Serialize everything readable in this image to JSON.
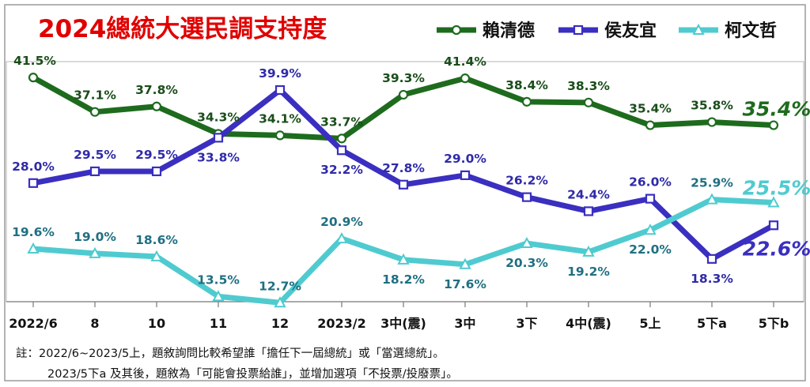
{
  "chart_data": {
    "type": "line",
    "title": "2024總統大選民調支持度",
    "categories": [
      "2022/6",
      "8",
      "10",
      "11",
      "12",
      "2023/2",
      "3中(震)",
      "3中",
      "3下",
      "4中(震)",
      "5上",
      "5下a",
      "5下b"
    ],
    "series": [
      {
        "name": "賴清德",
        "color": "#1e6b1e",
        "values": [
          41.5,
          37.1,
          37.8,
          34.3,
          34.1,
          33.7,
          39.3,
          41.4,
          38.4,
          38.3,
          35.4,
          35.8,
          35.4
        ],
        "labels": [
          "41.5%",
          "37.1%",
          "37.8%",
          "34.3%",
          "34.1%",
          "33.7%",
          "39.3%",
          "41.4%",
          "38.4%",
          "38.3%",
          "35.4%",
          "35.8%",
          "35.4%"
        ]
      },
      {
        "name": "侯友宜",
        "color": "#3a2fc0",
        "values": [
          28.0,
          29.5,
          29.5,
          33.8,
          39.9,
          32.2,
          27.8,
          29.0,
          26.2,
          24.4,
          26.0,
          18.3,
          22.6
        ],
        "labels": [
          "28.0%",
          "29.5%",
          "29.5%",
          "33.8%",
          "39.9%",
          "32.2%",
          "27.8%",
          "29.0%",
          "26.2%",
          "24.4%",
          "26.0%",
          "18.3%",
          "22.6%"
        ]
      },
      {
        "name": "柯文哲",
        "color": "#4fcbd0",
        "values": [
          19.6,
          19.0,
          18.6,
          13.5,
          12.7,
          20.9,
          18.2,
          17.6,
          20.3,
          19.2,
          22.0,
          25.9,
          25.5
        ],
        "labels": [
          "19.6%",
          "19.0%",
          "18.6%",
          "13.5%",
          "12.7%",
          "20.9%",
          "18.2%",
          "17.6%",
          "20.3%",
          "19.2%",
          "22.0%",
          "25.9%",
          "25.5%"
        ]
      }
    ],
    "legend_position": "top-right",
    "grid": false
  },
  "notes": [
    "註：2022/6~2023/5上，題敘詢問比較希望誰「擔任下一屆總統」或「當選總統」。",
    "2023/5下a 及其後，題敘為「可能會投票給誰」，並增加選項「不投票/投廢票」。"
  ]
}
